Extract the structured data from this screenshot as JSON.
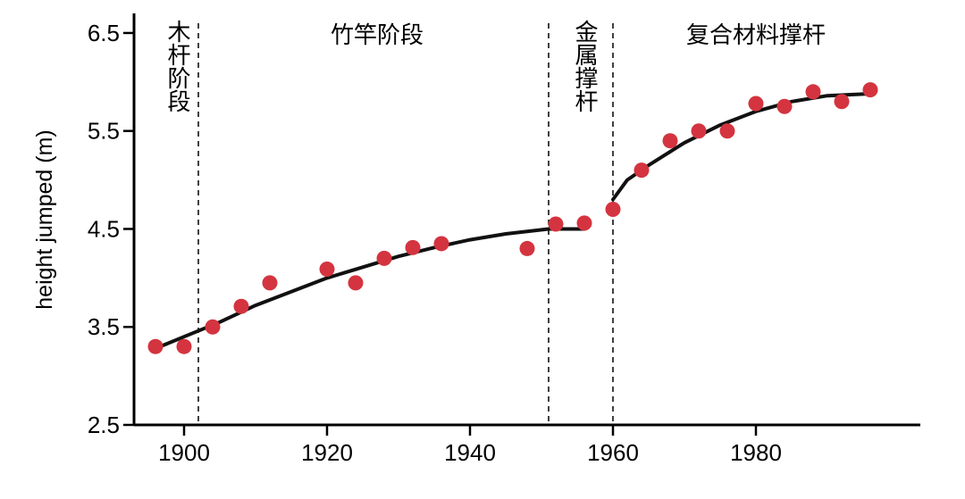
{
  "chart_data": {
    "type": "scatter",
    "title": "",
    "xlabel": "",
    "ylabel": "height jumped (m)",
    "xlim": [
      1893,
      2003
    ],
    "ylim": [
      2.5,
      6.7
    ],
    "x_ticks": [
      1900,
      1920,
      1940,
      1960,
      1980
    ],
    "y_ticks": [
      2.5,
      3.5,
      4.5,
      5.5,
      6.5
    ],
    "grid": false,
    "legend": "none",
    "colors": {
      "points": "#d4343f",
      "trend": "#111111"
    },
    "points": [
      {
        "x": 1896,
        "y": 3.3
      },
      {
        "x": 1900,
        "y": 3.3
      },
      {
        "x": 1904,
        "y": 3.5
      },
      {
        "x": 1908,
        "y": 3.71
      },
      {
        "x": 1912,
        "y": 3.95
      },
      {
        "x": 1920,
        "y": 4.09
      },
      {
        "x": 1924,
        "y": 3.95
      },
      {
        "x": 1928,
        "y": 4.2
      },
      {
        "x": 1932,
        "y": 4.31
      },
      {
        "x": 1936,
        "y": 4.35
      },
      {
        "x": 1948,
        "y": 4.3
      },
      {
        "x": 1952,
        "y": 4.55
      },
      {
        "x": 1956,
        "y": 4.56
      },
      {
        "x": 1960,
        "y": 4.7
      },
      {
        "x": 1964,
        "y": 5.1
      },
      {
        "x": 1968,
        "y": 5.4
      },
      {
        "x": 1972,
        "y": 5.5
      },
      {
        "x": 1976,
        "y": 5.5
      },
      {
        "x": 1980,
        "y": 5.78
      },
      {
        "x": 1984,
        "y": 5.75
      },
      {
        "x": 1988,
        "y": 5.9
      },
      {
        "x": 1992,
        "y": 5.8
      },
      {
        "x": 1996,
        "y": 5.92
      }
    ],
    "trend_segments": [
      [
        [
          1896,
          3.28
        ],
        [
          1900,
          3.4
        ],
        [
          1905,
          3.55
        ],
        [
          1910,
          3.72
        ],
        [
          1915,
          3.86
        ],
        [
          1920,
          4.0
        ],
        [
          1925,
          4.11
        ],
        [
          1930,
          4.22
        ],
        [
          1935,
          4.31
        ],
        [
          1940,
          4.39
        ],
        [
          1945,
          4.45
        ],
        [
          1951,
          4.5
        ],
        [
          1956,
          4.5
        ]
      ],
      [
        [
          1960,
          4.8
        ],
        [
          1962,
          5.0
        ],
        [
          1965,
          5.15
        ],
        [
          1970,
          5.38
        ],
        [
          1975,
          5.56
        ],
        [
          1980,
          5.7
        ],
        [
          1985,
          5.8
        ],
        [
          1990,
          5.86
        ],
        [
          1996,
          5.88
        ]
      ]
    ],
    "eras": [
      {
        "label": "木杆阶段",
        "orientation": "vertical",
        "label_x": 1899
      },
      {
        "label": "竹竿阶段",
        "orientation": "horizontal",
        "label_x": 1927
      },
      {
        "label": "金属撑杆",
        "orientation": "vertical",
        "label_x": 1956
      },
      {
        "label": "复合材料撑杆",
        "orientation": "horizontal",
        "label_x": 1980
      }
    ],
    "era_boundaries": [
      1902,
      1951,
      1960
    ]
  }
}
